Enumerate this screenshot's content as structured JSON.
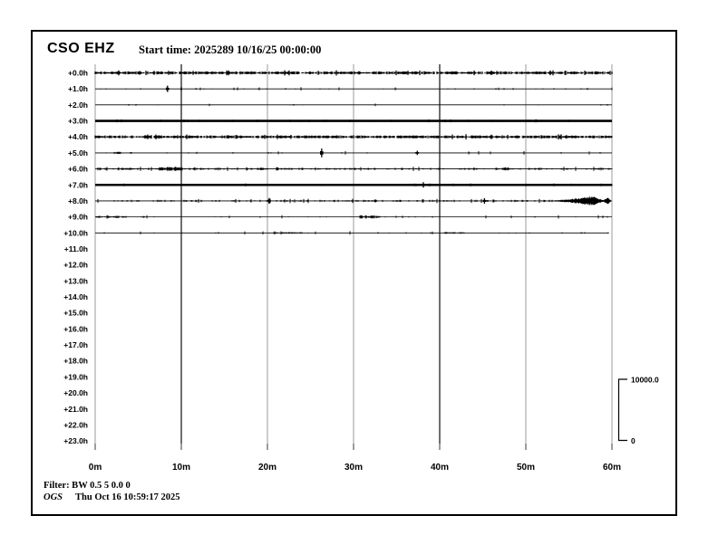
{
  "header": {
    "station": "CSO EHZ",
    "start_time": "Start time: 2025289 10/16/25 00:00:00"
  },
  "footer": {
    "filter": "Filter: BW 0.5 5 0.0 0",
    "org": "OGS",
    "timestamp": "Thu Oct 16 10:59:17 2025"
  },
  "colors": {
    "background": "#ffffff",
    "trace": "#000000",
    "grid_light": "#9b9b9b",
    "grid_dark": "#6f6f6f",
    "tick": "#3a3a3a",
    "border": "#000000",
    "text": "#000000"
  },
  "chart_data": {
    "type": "line",
    "title": "CSO EHZ helicorder (hourly seismic traces)",
    "start_time": "2025289 10/16/25 00:00:00",
    "x_axis": {
      "tick_labels": [
        "0m",
        "10m",
        "20m",
        "30m",
        "40m",
        "50m",
        "60m"
      ],
      "minutes_range": [
        0,
        60
      ],
      "grid": true
    },
    "y_axis": {
      "row_labels": [
        "+0.0h",
        "+1.0h",
        "+2.0h",
        "+3.0h",
        "+4.0h",
        "+5.0h",
        "+6.0h",
        "+7.0h",
        "+8.0h",
        "+9.0h",
        "+10.0h",
        "+11.0h",
        "+12.0h",
        "+13.0h",
        "+14.0h",
        "+15.0h",
        "+16.0h",
        "+17.0h",
        "+18.0h",
        "+19.0h",
        "+20.0h",
        "+21.0h",
        "+22.0h",
        "+23.0h"
      ]
    },
    "scale_bar": {
      "max_label": "10000.0",
      "min_label": "0"
    },
    "traces": [
      {
        "label": "+0.0h",
        "row": 0,
        "style": "heavy",
        "spikes": [],
        "bursts": []
      },
      {
        "label": "+1.0h",
        "row": 1,
        "style": "quiet",
        "spikes": [
          {
            "minute": 8.4,
            "amp": 3.5
          }
        ],
        "bursts": []
      },
      {
        "label": "+2.0h",
        "row": 2,
        "style": "sparse",
        "spikes": [],
        "bursts": []
      },
      {
        "label": "+3.0h",
        "row": 3,
        "style": "solid",
        "spikes": [],
        "bursts": []
      },
      {
        "label": "+4.0h",
        "row": 4,
        "style": "heavy",
        "spikes": [],
        "bursts": []
      },
      {
        "label": "+5.0h",
        "row": 5,
        "style": "quiet",
        "spikes": [
          {
            "minute": 26.3,
            "amp": 4.8
          },
          {
            "minute": 37.4,
            "amp": 2.4
          }
        ],
        "bursts": [
          {
            "from": 2.2,
            "to": 3.0,
            "amp": 1.2
          }
        ]
      },
      {
        "label": "+6.0h",
        "row": 6,
        "style": "medium",
        "spikes": [],
        "bursts": [
          {
            "from": 3.0,
            "to": 4.6,
            "amp": 1.4
          },
          {
            "from": 7.5,
            "to": 10.3,
            "amp": 2.3
          },
          {
            "from": 47.4,
            "to": 48.6,
            "amp": 1.8
          }
        ]
      },
      {
        "label": "+7.0h",
        "row": 7,
        "style": "solid",
        "spikes": [
          {
            "minute": 38.1,
            "amp": 3.0
          }
        ],
        "bursts": []
      },
      {
        "label": "+8.0h",
        "row": 8,
        "style": "medium",
        "spikes": [
          {
            "minute": 20.2,
            "amp": 3.2
          },
          {
            "minute": 45.2,
            "amp": 3.0
          }
        ],
        "bursts": [],
        "event": {
          "start": 52.0,
          "peak": 57.8,
          "peak_amp": 5.0,
          "trough": 59.0,
          "blob_peak": 59.45,
          "blob_amp": 4.5,
          "end": 59.9
        }
      },
      {
        "label": "+9.0h",
        "row": 9,
        "style": "quiet",
        "spikes": [],
        "bursts": [
          {
            "from": 0.1,
            "to": 3.6,
            "amp": 1.4
          },
          {
            "from": 30.6,
            "to": 33.0,
            "amp": 1.9
          }
        ]
      },
      {
        "label": "+10.0h",
        "row": 10,
        "style": "quiet",
        "spikes": [],
        "bursts": [
          {
            "from": 20.5,
            "to": 24.0,
            "amp": 1.0
          },
          {
            "from": 40.5,
            "to": 43.0,
            "amp": 1.0
          }
        ],
        "end_minute": 59.6
      }
    ],
    "rows_without_data": [
      "+11.0h",
      "+12.0h",
      "+13.0h",
      "+14.0h",
      "+15.0h",
      "+16.0h",
      "+17.0h",
      "+18.0h",
      "+19.0h",
      "+20.0h",
      "+21.0h",
      "+22.0h",
      "+23.0h"
    ]
  }
}
